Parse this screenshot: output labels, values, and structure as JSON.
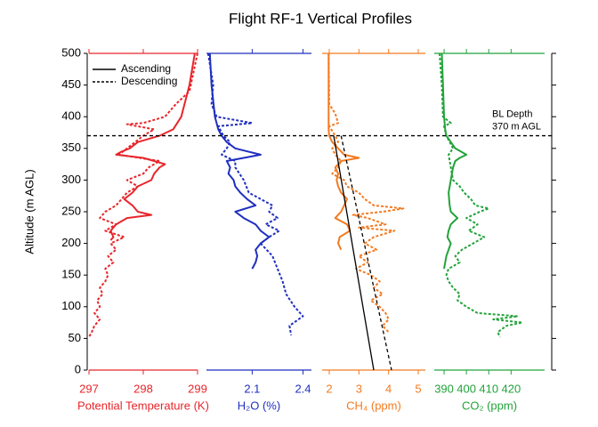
{
  "chart_data": {
    "type": "line",
    "title": "Flight RF-1 Vertical Profiles",
    "ylabel": "Altitude (m AGL)",
    "ylim": [
      0,
      500
    ],
    "yticks": [
      0,
      50,
      100,
      150,
      200,
      250,
      300,
      350,
      400,
      450,
      500
    ],
    "legend": [
      {
        "label": "Ascending",
        "line": "solid"
      },
      {
        "label": "Descending",
        "line": "dashed"
      }
    ],
    "bl_depth": 370,
    "annotation": [
      "BL Depth",
      "370 m AGL"
    ],
    "panels": [
      {
        "xlabel": "Potential Temperature (K)",
        "color": "#e8262b",
        "xlim": [
          297,
          299
        ],
        "xticks": [
          297,
          298,
          299
        ],
        "series": [
          {
            "line": "solid",
            "color": "#e8262b",
            "x": [
              298.95,
              298.85,
              298.7,
              298.55,
              298.3,
              297.9,
              297.75,
              297.6,
              297.5,
              298.0,
              298.2,
              298.4,
              298.3,
              298.2,
              298.15,
              297.9,
              297.8,
              297.65,
              297.8,
              297.9,
              298.15,
              297.7,
              297.5,
              297.4,
              297.45,
              297.4
            ],
            "y": [
              500,
              450,
              400,
              380,
              370,
              360,
              350,
              345,
              340,
              335,
              330,
              325,
              320,
              310,
              300,
              290,
              280,
              270,
              260,
              250,
              245,
              240,
              230,
              220,
              210,
              205
            ]
          },
          {
            "line": "dashed",
            "color": "#e8262b",
            "x": [
              299.0,
              298.95,
              298.9,
              298.85,
              298.6,
              298.4,
              298.0,
              297.7,
              298.2,
              298.0,
              297.85,
              297.7,
              297.55,
              298.3,
              298.1,
              298.0,
              297.7,
              297.9,
              297.7,
              297.6,
              297.5,
              297.3,
              297.2,
              297.5,
              297.3,
              297.65,
              297.4,
              297.5,
              297.35,
              297.45,
              297.3,
              297.35,
              297.3,
              297.2,
              297.25,
              297.15,
              297.2,
              297.1,
              297.2,
              297.1,
              297.05,
              297.0
            ],
            "y": [
              500,
              480,
              460,
              440,
              420,
              400,
              390,
              388,
              380,
              370,
              360,
              350,
              340,
              330,
              320,
              310,
              300,
              290,
              280,
              270,
              260,
              250,
              240,
              230,
              220,
              210,
              200,
              190,
              180,
              170,
              160,
              150,
              140,
              130,
              120,
              110,
              100,
              90,
              80,
              70,
              60,
              52
            ]
          }
        ]
      },
      {
        "xlabel": "H₂O (%)",
        "color": "#1f2fbf",
        "xlim": [
          1.83,
          2.45
        ],
        "xticks": [
          2.1,
          2.4
        ],
        "series": [
          {
            "line": "solid",
            "color": "#1f2fbf",
            "x": [
              1.85,
              1.86,
              1.88,
              1.9,
              1.92,
              1.95,
              2.0,
              2.15,
              2.05,
              1.95,
              1.97,
              1.96,
              1.99,
              2.0,
              2.03,
              2.07,
              2.12,
              2.0,
              2.05,
              2.12,
              2.15,
              2.2,
              2.15,
              2.12,
              2.13,
              2.12,
              2.1
            ],
            "y": [
              500,
              450,
              400,
              380,
              370,
              360,
              350,
              340,
              335,
              330,
              320,
              310,
              300,
              290,
              280,
              270,
              260,
              250,
              240,
              230,
              220,
              210,
              200,
              190,
              180,
              170,
              160
            ]
          },
          {
            "line": "dashed",
            "color": "#1f2fbf",
            "x": [
              1.84,
              1.87,
              1.86,
              1.89,
              2.1,
              1.9,
              1.93,
              1.97,
              1.95,
              1.92,
              2.0,
              2.0,
              2.05,
              2.08,
              2.22,
              2.2,
              2.25,
              2.18,
              2.26,
              2.2,
              2.15,
              2.22,
              2.25,
              2.28,
              2.3,
              2.35,
              2.4,
              2.32,
              2.33
            ],
            "y": [
              500,
              450,
              420,
              400,
              390,
              385,
              370,
              360,
              350,
              340,
              330,
              320,
              300,
              280,
              260,
              250,
              240,
              230,
              220,
              210,
              200,
              180,
              160,
              140,
              120,
              100,
              85,
              70,
              55
            ]
          }
        ]
      },
      {
        "xlabel": "CH₄ (ppm)",
        "color": "#f47a20",
        "xlim": [
          1.76,
          5.24
        ],
        "xticks": [
          2,
          3,
          4,
          5
        ],
        "series": [
          {
            "line": "solid",
            "color": "#f47a20",
            "x": [
              1.98,
              1.98,
              1.98,
              2.0,
              2.1,
              2.3,
              2.5,
              3.0,
              2.4,
              2.2,
              2.3,
              2.25,
              2.3,
              2.4,
              2.6,
              2.5,
              2.4,
              2.2,
              2.6,
              2.7,
              2.35,
              2.3,
              2.4
            ],
            "y": [
              500,
              400,
              380,
              370,
              360,
              350,
              340,
              335,
              330,
              320,
              310,
              300,
              290,
              280,
              270,
              260,
              250,
              240,
              230,
              220,
              210,
              200,
              190
            ]
          },
          {
            "line": "dashed",
            "color": "#f47a20",
            "x": [
              1.98,
              2.0,
              2.2,
              2.3,
              2.0,
              2.2,
              2.3,
              2.1,
              2.2,
              2.4,
              2.3,
              2.1,
              2.5,
              2.6,
              3.0,
              3.2,
              3.5,
              4.5,
              3.8,
              2.8,
              3.3,
              3.9,
              3.0,
              4.2,
              3.5,
              3.2,
              3.6,
              3.0,
              3.3,
              2.9,
              3.4,
              3.7,
              3.5,
              3.8,
              3.4,
              3.7,
              3.9,
              4.0,
              3.8,
              4.0
            ],
            "y": [
              500,
              420,
              405,
              390,
              385,
              370,
              360,
              350,
              340,
              330,
              320,
              310,
              300,
              290,
              280,
              270,
              260,
              255,
              250,
              245,
              240,
              230,
              225,
              220,
              210,
              200,
              190,
              180,
              170,
              160,
              150,
              140,
              130,
              120,
              110,
              100,
              90,
              80,
              70,
              60
            ]
          },
          {
            "line": "solid",
            "color": "#000000",
            "x": [
              2.15,
              3.5
            ],
            "y": [
              370,
              0
            ]
          },
          {
            "line": "dashed",
            "color": "#000000",
            "x": [
              2.4,
              4.1
            ],
            "y": [
              370,
              0
            ]
          }
        ]
      },
      {
        "xlabel": "CO₂ (ppm)",
        "color": "#22a33a",
        "xlim": [
          385.6,
          435
        ],
        "xticks": [
          390,
          400,
          410,
          420
        ],
        "series": [
          {
            "line": "solid",
            "color": "#22a33a",
            "x": [
              389,
              389.5,
              390,
              390.5,
              391,
              393,
              395,
              400,
              397,
              395,
              394,
              393,
              392,
              392.5,
              393,
              396,
              393,
              392,
              391.5,
              393,
              392,
              391,
              390.5,
              390
            ],
            "y": [
              500,
              450,
              400,
              380,
              370,
              360,
              350,
              340,
              335,
              330,
              320,
              300,
              280,
              260,
              250,
              240,
              230,
              220,
              210,
              200,
              190,
              180,
              170,
              160
            ]
          },
          {
            "line": "dashed",
            "color": "#22a33a",
            "x": [
              388,
              389,
              389.5,
              393,
              390,
              391,
              394,
              392,
              393,
              394,
              397,
              399,
              402,
              404,
              410,
              406,
              400,
              405,
              401,
              408,
              403,
              398,
              395,
              397,
              392,
              391,
              392,
              394,
              397,
              396,
              400,
              405,
              423,
              412,
              425,
              418,
              414,
              415
            ],
            "y": [
              500,
              450,
              400,
              390,
              385,
              370,
              350,
              340,
              320,
              300,
              290,
              280,
              270,
              260,
              255,
              250,
              240,
              230,
              220,
              210,
              200,
              190,
              180,
              170,
              160,
              150,
              140,
              130,
              120,
              110,
              100,
              90,
              85,
              80,
              75,
              70,
              60,
              52
            ]
          }
        ]
      }
    ]
  }
}
